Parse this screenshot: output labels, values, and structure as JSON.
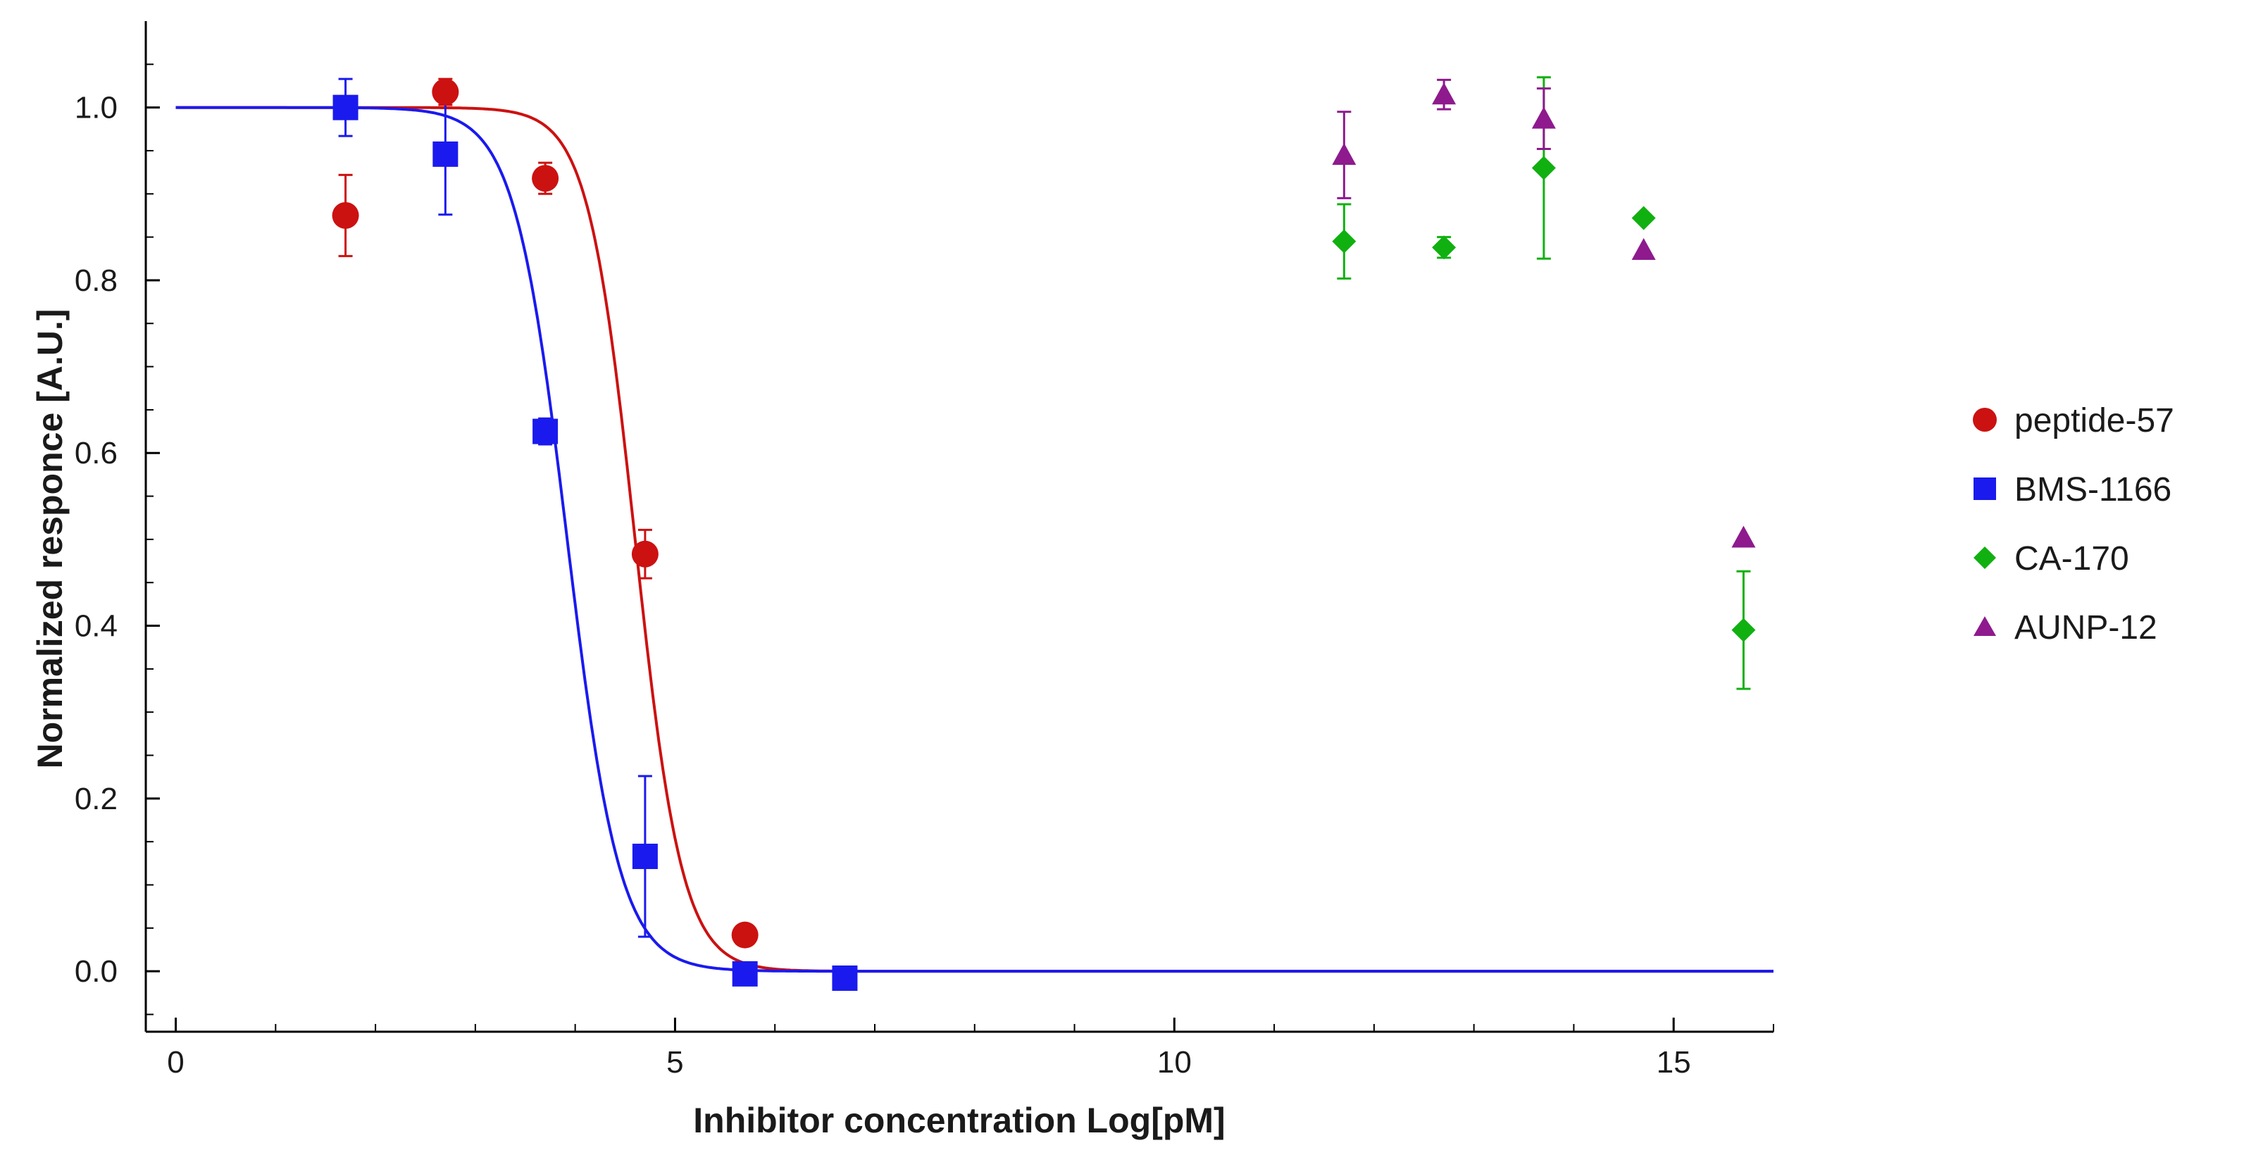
{
  "chart_data": {
    "type": "scatter",
    "title": "",
    "xlabel": "Inhibitor concentration Log[pM]",
    "ylabel": "Normalized responce [A.U.]",
    "xlim": [
      -0.3,
      16
    ],
    "ylim": [
      -0.07,
      1.1
    ],
    "x_ticks": [
      0,
      5,
      10,
      15
    ],
    "x_tick_labels": [
      "0",
      "5",
      "10",
      "15"
    ],
    "y_ticks": [
      0.0,
      0.2,
      0.4,
      0.6,
      0.8,
      1.0
    ],
    "y_tick_labels": [
      "0.0",
      "0.2",
      "0.4",
      "0.6",
      "0.8",
      "1.0"
    ],
    "grid": false,
    "legend_position": "right",
    "series": [
      {
        "name": "peptide-57",
        "color": "#cc1111",
        "marker": "circle",
        "points": [
          {
            "x": 1.7,
            "y": 0.875,
            "err": 0.047
          },
          {
            "x": 2.7,
            "y": 1.018,
            "err": 0.015
          },
          {
            "x": 3.7,
            "y": 0.918,
            "err": 0.018
          },
          {
            "x": 4.7,
            "y": 0.483,
            "err": 0.028
          },
          {
            "x": 5.7,
            "y": 0.042,
            "err": 0.0
          }
        ],
        "fit": {
          "top": 1.0,
          "bottom": 0.0,
          "log_ic50": 4.6,
          "hill": 1.85
        }
      },
      {
        "name": "BMS-1166",
        "color": "#1a1aee",
        "marker": "square",
        "points": [
          {
            "x": 1.7,
            "y": 1.0,
            "err": 0.033
          },
          {
            "x": 2.7,
            "y": 0.946,
            "err": 0.07
          },
          {
            "x": 3.7,
            "y": 0.625,
            "err": 0.015
          },
          {
            "x": 4.7,
            "y": 0.133,
            "err": 0.093
          },
          {
            "x": 5.7,
            "y": -0.003,
            "err": 0.0
          },
          {
            "x": 6.7,
            "y": -0.008,
            "err": 0.0
          }
        ],
        "fit": {
          "top": 1.0,
          "bottom": 0.0,
          "log_ic50": 3.92,
          "hill": 1.65
        }
      },
      {
        "name": "CA-170",
        "color": "#11b011",
        "marker": "diamond",
        "points": [
          {
            "x": 11.7,
            "y": 0.845,
            "err": 0.043
          },
          {
            "x": 12.7,
            "y": 0.838,
            "err": 0.012
          },
          {
            "x": 13.7,
            "y": 0.93,
            "err": 0.105
          },
          {
            "x": 14.7,
            "y": 0.872,
            "err": 0.0
          },
          {
            "x": 15.7,
            "y": 0.395,
            "err": 0.068
          }
        ]
      },
      {
        "name": "AUNP-12",
        "color": "#8e1a8e",
        "marker": "triangle",
        "points": [
          {
            "x": 11.7,
            "y": 0.945,
            "err": 0.05
          },
          {
            "x": 12.7,
            "y": 1.015,
            "err": 0.017
          },
          {
            "x": 13.7,
            "y": 0.987,
            "err": 0.035
          },
          {
            "x": 14.7,
            "y": 0.835,
            "err": 0.0
          },
          {
            "x": 15.7,
            "y": 0.502,
            "err": 0.0
          }
        ]
      }
    ]
  }
}
